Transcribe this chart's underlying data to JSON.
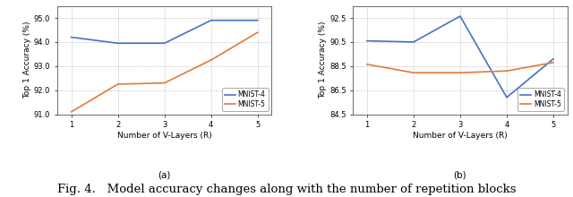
{
  "x": [
    1,
    2,
    3,
    4,
    5
  ],
  "plot_a": {
    "mnist4": [
      94.2,
      93.95,
      93.95,
      94.9,
      94.9
    ],
    "mnist5": [
      91.1,
      92.25,
      92.3,
      93.25,
      94.4
    ],
    "ylim": [
      91.0,
      95.5
    ],
    "yticks": [
      91.0,
      92.0,
      93.0,
      94.0,
      95.0
    ],
    "ytick_labels": [
      "91.0",
      "92.0",
      "93.0",
      "94.0",
      "95.0"
    ],
    "ylabel": "Top 1 Accuracy (%)",
    "xlabel": "Number of V-Layers (R)",
    "subtitle": "(a)"
  },
  "plot_b": {
    "mnist4": [
      90.6,
      90.5,
      92.65,
      85.9,
      89.1
    ],
    "mnist5": [
      88.65,
      87.95,
      87.95,
      88.1,
      88.8
    ],
    "ylim": [
      84.5,
      93.5
    ],
    "yticks": [
      84.5,
      86.5,
      88.5,
      90.5,
      92.5
    ],
    "ytick_labels": [
      "84.5",
      "86.5",
      "88.5",
      "90.5",
      "92.5"
    ],
    "ylabel": "Top 1 Accuracy (%)",
    "xlabel": "Number of V-Layers (R)",
    "subtitle": "(b)"
  },
  "color_mnist4": "#4472c4",
  "color_mnist5": "#e07b39",
  "legend_labels": [
    "MNIST-4",
    "MNIST-5"
  ],
  "caption": "Fig. 4.   Model accuracy changes along with the number of repetition blocks",
  "caption_fontsize": 9.5
}
